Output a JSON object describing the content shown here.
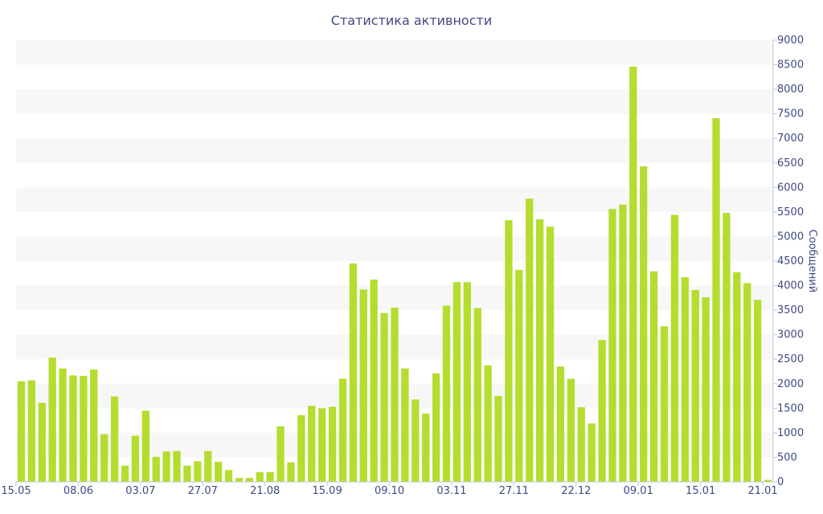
{
  "chart_data": {
    "type": "bar",
    "title": "Статистика активности",
    "ylabel": "Сообщений",
    "ylim": [
      0,
      9000
    ],
    "y_ticks": [
      0,
      500,
      1000,
      1500,
      2000,
      2500,
      3000,
      3500,
      4000,
      4500,
      5000,
      5500,
      6000,
      6500,
      7000,
      7500,
      8000,
      8500,
      9000
    ],
    "y_axis_side": "right",
    "grid": "alternating horizontal bands",
    "x_ticks": [
      {
        "index": 0,
        "label": "15.05"
      },
      {
        "index": 6,
        "label": "08.06"
      },
      {
        "index": 12,
        "label": "03.07"
      },
      {
        "index": 18,
        "label": "27.07"
      },
      {
        "index": 24,
        "label": "21.08"
      },
      {
        "index": 30,
        "label": "15.09"
      },
      {
        "index": 36,
        "label": "09.10"
      },
      {
        "index": 42,
        "label": "03.11"
      },
      {
        "index": 48,
        "label": "27.11"
      },
      {
        "index": 54,
        "label": "22.12"
      },
      {
        "index": 60,
        "label": "09.01"
      },
      {
        "index": 66,
        "label": "15.01"
      },
      {
        "index": 72,
        "label": "21.01"
      }
    ],
    "values": [
      2050,
      2070,
      1610,
      2530,
      2310,
      2170,
      2160,
      2290,
      970,
      1740,
      330,
      940,
      1450,
      510,
      620,
      630,
      330,
      420,
      630,
      410,
      240,
      80,
      80,
      200,
      200,
      1130,
      400,
      1360,
      1550,
      1500,
      1530,
      2100,
      4450,
      3920,
      4120,
      3440,
      3550,
      2310,
      1680,
      1390,
      2210,
      3590,
      4070,
      4070,
      3540,
      2370,
      1750,
      5330,
      4320,
      5770,
      5350,
      5200,
      2350,
      2100,
      1520,
      1190,
      2890,
      5560,
      5650,
      8460,
      6430,
      4290,
      3170,
      5440,
      4170,
      3910,
      3760,
      7410,
      5480,
      4270,
      4050,
      3710,
      40
    ],
    "colors": {
      "bar": "#b4dd2f",
      "text": "#3e4a82",
      "band": "#f7f7f7"
    }
  }
}
